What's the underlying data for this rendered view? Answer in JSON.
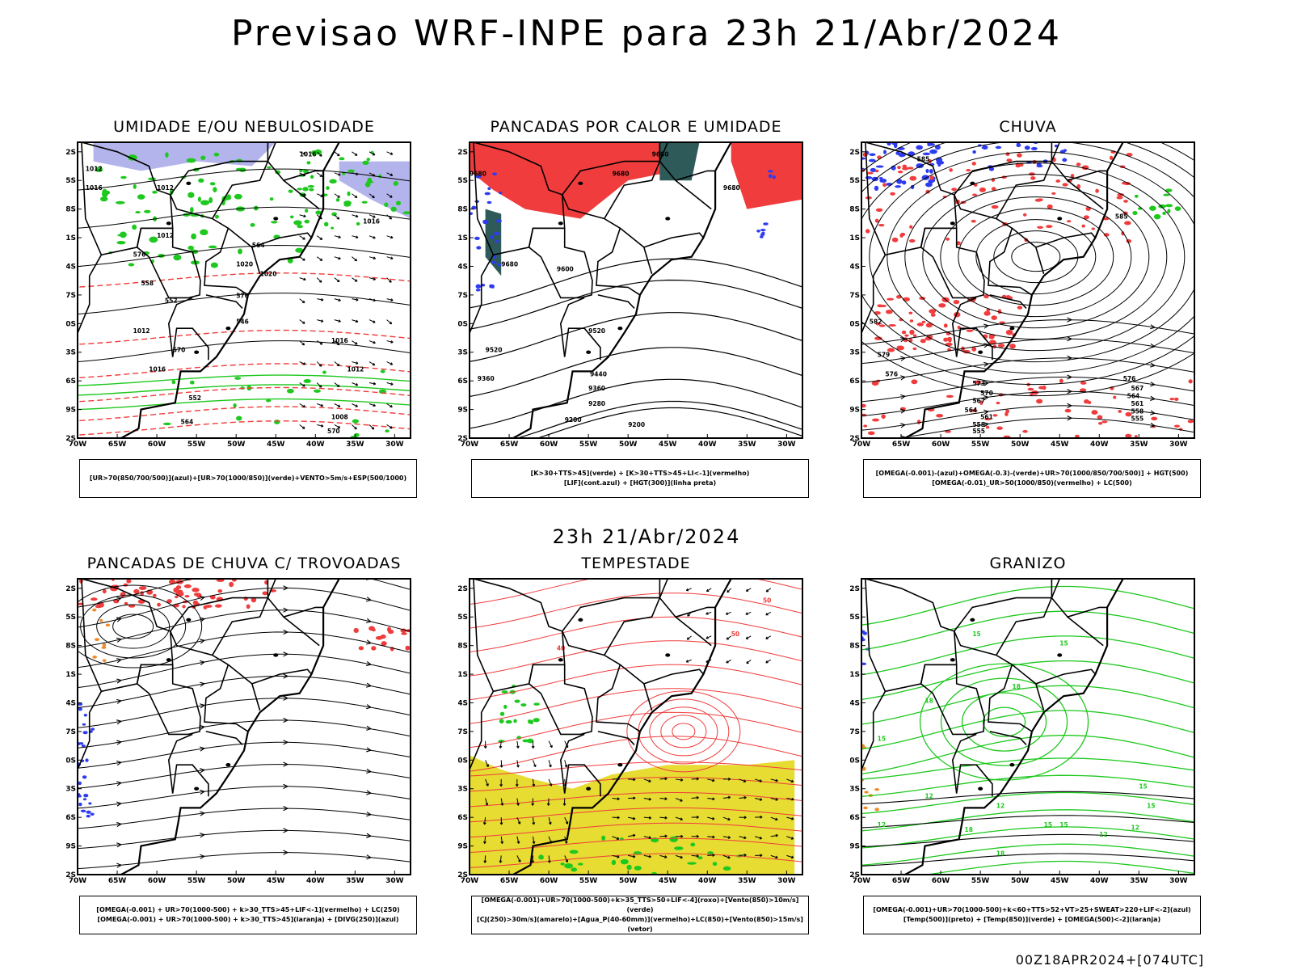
{
  "header": {
    "title": "Previsao WRF-INPE  para 23h 21/Abr/2024"
  },
  "row_time": "23h 21/Abr/2024",
  "footer": "00Z18APR2024+[074UTC]",
  "axes": {
    "lat_labels": [
      "12S",
      "15S",
      "18S",
      "21S",
      "24S",
      "27S",
      "30S",
      "33S",
      "36S",
      "39S",
      "42S"
    ],
    "lon_labels": [
      "70W",
      "65W",
      "60W",
      "55W",
      "50W",
      "45W",
      "40W",
      "35W",
      "30W"
    ]
  },
  "colors": {
    "blue": "#2e3cf0",
    "green": "#1ec81e",
    "red": "#f03c3c",
    "lavender": "#b4b4ec",
    "darkteal": "#2e5a5a",
    "yellow": "#e6dc32",
    "orange": "#f08c28",
    "black": "#000000"
  },
  "panels": [
    {
      "key": "umidade",
      "title": "UMIDADE E/OU NEBULOSIDADE",
      "caption": [
        "[UR>70(850/700/500)](azul)+[UR>70(1000/850)](verde)+VENTO>5m/s+ESP(500/1000)"
      ],
      "contour_labels": [
        "1016",
        "1012",
        "1012",
        "1016",
        "1012",
        "1016",
        "1020",
        "1020",
        "1016",
        "1012",
        "1016",
        "1012",
        "1008",
        "570",
        "576",
        "576",
        "564",
        "558",
        "552",
        "546",
        "552",
        "564",
        "570"
      ]
    },
    {
      "key": "pancadas_calor",
      "title": "PANCADAS POR CALOR E UMIDADE",
      "caption": [
        "[K>30+TTS>45](verde) + [K>30+TTS>45+LI<-1](vermelho)",
        "[LIF](cont.azul) + [HGT(300)](linha preta)"
      ],
      "contour_labels": [
        "9680",
        "9680",
        "9680",
        "9680",
        "9680",
        "9600",
        "9520",
        "9520",
        "9440",
        "9360",
        "9280",
        "9200",
        "9200",
        "9360"
      ]
    },
    {
      "key": "chuva",
      "title": "CHUVA",
      "caption": [
        "[OMEGA(-0.001)-(azul)+OMEGA(-0.3)-(verde)+UR>70(1000/850/700/500)] + HGT(500)",
        "[OMEGA(-0.01)_UR>50(1000/850)(vermelho) + LC(500)"
      ],
      "contour_labels": [
        "585",
        "585",
        "582",
        "579",
        "576",
        "573",
        "570",
        "567",
        "564",
        "561",
        "558",
        "555",
        "576",
        "567",
        "564",
        "561",
        "558",
        "555"
      ]
    },
    {
      "key": "trovoadas",
      "title": "PANCADAS DE CHUVA C/ TROVOADAS",
      "caption": [
        "[OMEGA(-0.001) + UR>70(1000-500) + k>30_TTS>45+LIF<-1](vermelho) + LC(250)",
        "[OMEGA(-0.001) + UR>70(1000-500) + k>30_TTS>45](laranja) + [DIVG(250)](azul)"
      ],
      "contour_labels": []
    },
    {
      "key": "tempestade",
      "title": "TEMPESTADE",
      "caption": [
        "[OMEGA(-0.001)+UR>70(1000-500)+k>35_TTS>50+LIF<-4](roxo)+[Vento(850)>10m/s](verde)",
        "[CJ(250)>30m/s](amarelo)+[Agua_P(40-60mm)](vermelho)+LC(850)+[Vento(850)>15m/s](vetor)"
      ],
      "contour_labels": [
        "50",
        "40",
        "50"
      ]
    },
    {
      "key": "granizo",
      "title": "GRANIZO",
      "caption": [
        "[OMEGA(-0.001)+UR>70(1000-500)+k<60+TTS>52+VT>25+SWEAT>220+LIF<-2](azul)",
        "[Temp(500)](preto) + [Temp(850)](verde) + [OMEGA(500)<-2](laranja)"
      ],
      "contour_labels": [
        "15",
        "15",
        "18",
        "18",
        "15",
        "12",
        "12",
        "15",
        "12",
        "12",
        "15",
        "15",
        "18",
        "18",
        "12",
        "15"
      ]
    }
  ]
}
